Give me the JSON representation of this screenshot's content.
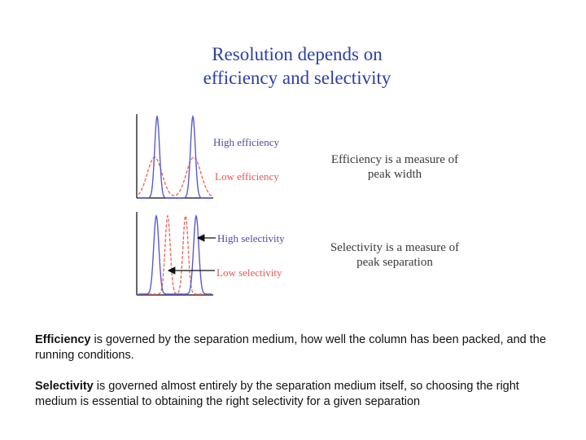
{
  "title": {
    "line1": "Resolution depends on",
    "line2": "efficiency and selectivity"
  },
  "diagram": {
    "labels": {
      "high_efficiency": "High efficiency",
      "low_efficiency": "Low efficiency",
      "high_selectivity": "High selectivity",
      "low_selectivity": "Low selectivity"
    },
    "captions": {
      "efficiency_line1": "Efficiency is a measure of",
      "efficiency_line2": "peak width",
      "selectivity_line1": "Selectivity is a measure of",
      "selectivity_line2": "peak separation"
    },
    "colors": {
      "high": "#5a5ad0",
      "low": "#ee6b5f",
      "title": "#2b3fa4",
      "axis": "#333333"
    }
  },
  "body": {
    "p1_term": "Efficiency",
    "p1_rest": " is governed by the separation medium, how well the column has been packed, and the running conditions.",
    "p2_term": "Selectivity",
    "p2_rest": " is governed almost entirely by the separation medium itself, so choosing the right medium is essential to obtaining the right selectivity for a given separation"
  }
}
